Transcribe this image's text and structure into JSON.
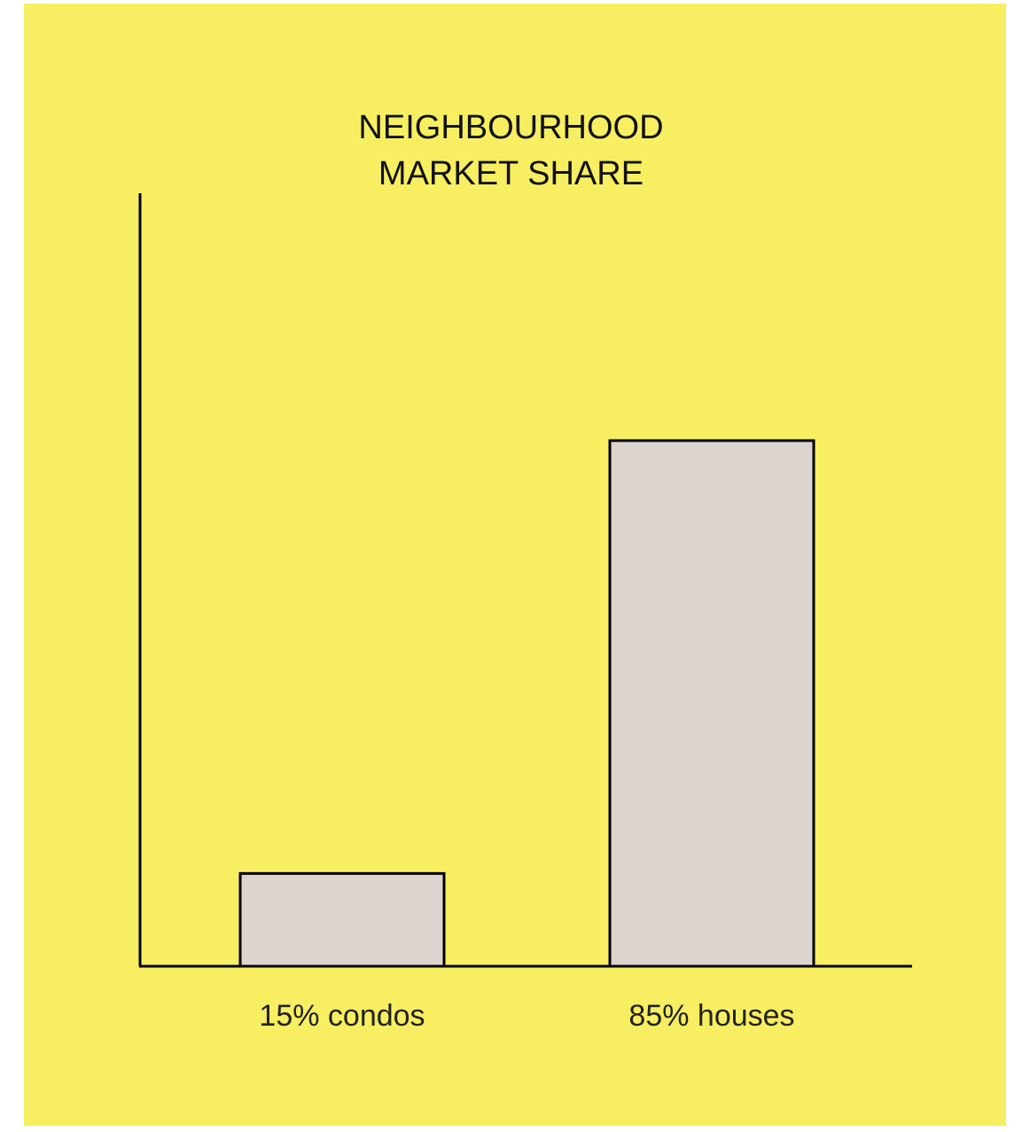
{
  "colors": {
    "background": "#f7ef61",
    "bar_fill": "#dcd4cf",
    "bar_stroke": "#000000",
    "axis": "#000000"
  },
  "chart_data": {
    "type": "bar",
    "title_lines": [
      "NEIGHBOURHOOD",
      "MARKET SHARE"
    ],
    "categories": [
      "15% condos",
      "85% houses"
    ],
    "values": [
      15,
      85
    ],
    "xlabel": "",
    "ylabel": "",
    "ylim": [
      0,
      125
    ],
    "grid": false,
    "legend": "none"
  }
}
